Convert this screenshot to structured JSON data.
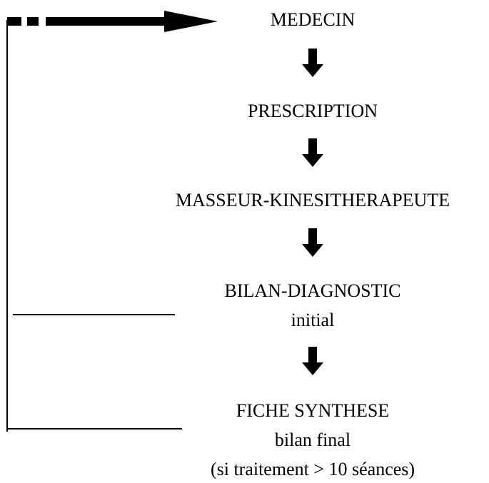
{
  "nodes": [
    {
      "lines": [
        "MEDECIN"
      ]
    },
    {
      "lines": [
        "PRESCRIPTION"
      ]
    },
    {
      "lines": [
        "MASSEUR-KINESITHERAPEUTE"
      ]
    },
    {
      "lines": [
        "BILAN-DIAGNOSTIC",
        "initial"
      ]
    },
    {
      "lines": [
        "FICHE SYNTHESE",
        "bilan final",
        "(si traitement > 10 séances)"
      ]
    }
  ]
}
